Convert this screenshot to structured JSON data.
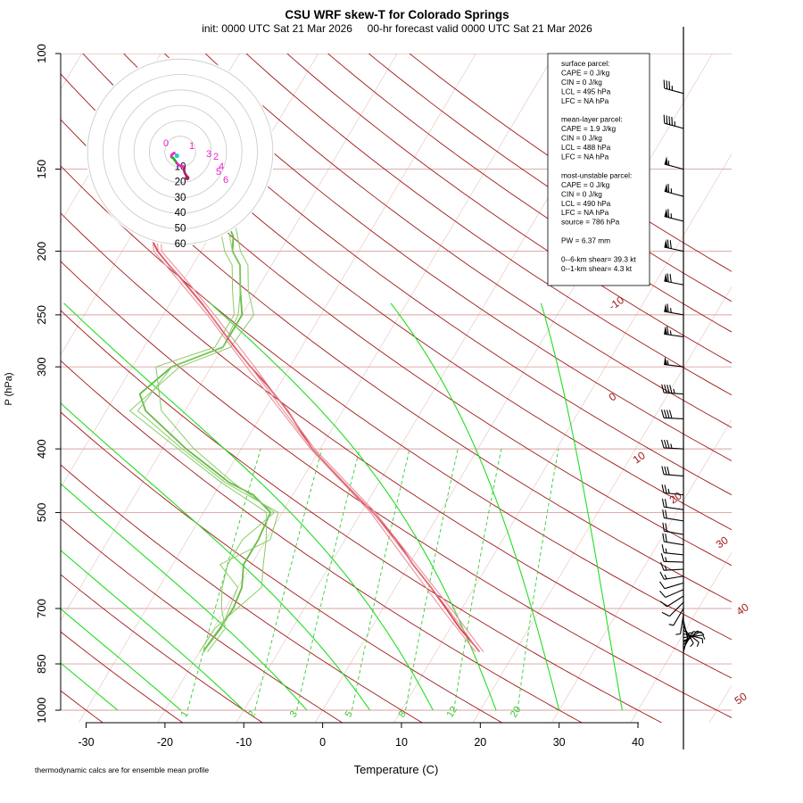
{
  "title": "CSU WRF skew-T for Colorado Springs",
  "subtitle": "init: 0000 UTC Sat 21 Mar 2026     00-hr forecast valid 0000 UTC Sat 21 Mar 2026",
  "xlabel": "Temperature (C)",
  "ylabel": "P (hPa)",
  "footnote": "thermodynamic calcs are for ensemble mean profile",
  "colors": {
    "isobar": "#d9a0a0",
    "isotherm": "#e8c0c0",
    "dry_adiabat": "#a01818",
    "moist_adiabat": "#22dd22",
    "mixing_ratio": "#33cc33",
    "temperature": "#dd4455",
    "temperature_member": "#e58a94",
    "dewpoint": "#66bb44",
    "dewpoint_member": "#88cc66",
    "hodo_ring": "#c8c8c8",
    "hodo_trace": "#ee22cc",
    "hodo_low": "#22aa22",
    "hodo_start": "#22cccc",
    "hodo_end": "#aa2266",
    "wind_barb": "#000000"
  },
  "info_box": {
    "lines": [
      "surface parcel:",
      "CAPE = 0 J/kg",
      "CIN = 0 J/kg",
      "LCL = 495 hPa",
      "LFC = NA hPa",
      "",
      "mean-layer parcel:",
      "CAPE = 1.9 J/kg",
      "CIN = 0 J/kg",
      "LCL = 488 hPa",
      "LFC = NA hPa",
      "",
      "most-unstable parcel:",
      "CAPE = 0 J/kg",
      "CIN = 0 J/kg",
      "LCL = 490 hPa",
      "LFC = NA hPa",
      "source = 786 hPa",
      "",
      "PW =  6.37 mm",
      "",
      "0--6-km shear= 39.3 kt",
      "0--1-km shear= 4.3 kt"
    ]
  },
  "hodograph": {
    "rings": [
      "10",
      "20",
      "30",
      "40",
      "50",
      "60"
    ],
    "labels": [
      "0",
      "1",
      "2",
      "3",
      "4",
      "5",
      "6"
    ]
  },
  "chart_data": {
    "type": "line",
    "title": "CSU WRF skew-T for Colorado Springs",
    "xlabel": "Temperature (C)",
    "ylabel": "P (hPa)",
    "x_ticks": [
      -30,
      -20,
      -10,
      0,
      10,
      20,
      30,
      40
    ],
    "y_ticks": [
      100,
      150,
      200,
      250,
      300,
      400,
      500,
      700,
      850,
      1000
    ],
    "y_scale": "log",
    "dry_adiabat_labels": [
      "-10",
      "0",
      "10",
      "20",
      "30",
      "40",
      "50"
    ],
    "dry_adiabat_thetas_K": [
      243.15,
      253.15,
      263.15,
      273.15,
      283.15,
      293.15,
      303.15,
      313.15,
      323.15,
      333.15,
      343.15,
      353.15,
      363.15,
      373.15,
      383.15,
      393.15,
      403.15,
      413.15,
      423.15,
      433.15,
      443.15,
      453.15
    ],
    "mixing_ratio_labels": [
      "1",
      "2",
      "3",
      "5",
      "8",
      "12",
      "20"
    ],
    "series": [
      {
        "name": "temperature",
        "role": "ensemble mean",
        "pressure": [
          815,
          800,
          750,
          700,
          650,
          600,
          550,
          500,
          450,
          400,
          350,
          320,
          300,
          280,
          250,
          240,
          220,
          210,
          200,
          190,
          180,
          170,
          160,
          150,
          140,
          130,
          120,
          115
        ],
        "value": [
          15.5,
          14.6,
          11.2,
          8,
          4.5,
          0.5,
          -3.5,
          -8.5,
          -14.5,
          -21,
          -27,
          -31.5,
          -35,
          -38.5,
          -44,
          -46,
          -50.5,
          -53,
          -55.5,
          -57.5,
          -58,
          -58.5,
          -58.5,
          -58.5,
          -58.5,
          -59,
          -59,
          -59
        ]
      },
      {
        "name": "temperature",
        "role": "member",
        "pressure": [
          815,
          700,
          500,
          400,
          300,
          250,
          220,
          200,
          180,
          160,
          140,
          120,
          115
        ],
        "value": [
          15,
          7.4,
          -8.8,
          -21.2,
          -35.5,
          -44.4,
          -51,
          -56,
          -58.6,
          -59.4,
          -59.5,
          -60,
          -60
        ]
      },
      {
        "name": "temperature",
        "role": "member",
        "pressure": [
          815,
          700,
          500,
          400,
          300,
          250,
          220,
          200,
          180,
          160,
          140,
          120,
          115
        ],
        "value": [
          16,
          8.6,
          -8.2,
          -20.7,
          -34.5,
          -43.5,
          -50,
          -55,
          -57.4,
          -57.6,
          -57.5,
          -58,
          -58
        ]
      },
      {
        "name": "temperature",
        "role": "member",
        "pressure": [
          815,
          700,
          500,
          400,
          300,
          250,
          220,
          200,
          180,
          160,
          140,
          120,
          115
        ],
        "value": [
          15.5,
          8.2,
          -8.5,
          -21,
          -35,
          -44,
          -50.6,
          -55.4,
          -58.2,
          -58.8,
          -59,
          -59.5,
          -59.5
        ]
      },
      {
        "name": "dewpoint",
        "role": "ensemble mean",
        "pressure": [
          815,
          800,
          750,
          700,
          650,
          600,
          550,
          500,
          470,
          450,
          400,
          350,
          330,
          300,
          280,
          250,
          230,
          210,
          200,
          190,
          180,
          170,
          160,
          150
        ],
        "value": [
          -19.5,
          -19.5,
          -19.2,
          -19,
          -19.5,
          -21,
          -21,
          -21.5,
          -25,
          -29,
          -37,
          -45,
          -47,
          -45,
          -40,
          -40,
          -42,
          -44,
          -46,
          -47,
          -49,
          -51,
          -53,
          -57
        ]
      },
      {
        "name": "dewpoint",
        "role": "member",
        "pressure": [
          815,
          750,
          700,
          650,
          600,
          550,
          500,
          450,
          400,
          350,
          300,
          280,
          250,
          230,
          210,
          200,
          180,
          160,
          150
        ],
        "value": [
          -20,
          -19.8,
          -18.5,
          -17,
          -18.5,
          -20,
          -22,
          -30,
          -38,
          -47,
          -44,
          -39,
          -38.5,
          -41,
          -43,
          -45,
          -48,
          -52,
          -56
        ]
      },
      {
        "name": "dewpoint",
        "role": "member",
        "pressure": [
          815,
          750,
          700,
          650,
          600,
          550,
          500,
          450,
          400,
          350,
          300,
          280,
          250,
          230,
          210,
          200,
          180,
          160,
          150
        ],
        "value": [
          -19,
          -18.5,
          -20.5,
          -22,
          -23,
          -23,
          -21,
          -28.5,
          -36,
          -43,
          -47,
          -41,
          -41,
          -43,
          -45,
          -47,
          -50,
          -54,
          -57
        ]
      },
      {
        "name": "dewpoint",
        "role": "member",
        "pressure": [
          815,
          750,
          700,
          650,
          600,
          550,
          500,
          450,
          400,
          350,
          300,
          280,
          250,
          230,
          210,
          200,
          180,
          160,
          150
        ],
        "value": [
          -19.5,
          -19,
          -19.5,
          -20,
          -24,
          -19.5,
          -20.5,
          -29.5,
          -37.5,
          -46,
          -45,
          -40,
          -40.5,
          -42,
          -44,
          -46,
          -49,
          -52,
          -56
        ]
      }
    ],
    "hodograph_kt": {
      "u": [
        4.5,
        4.4,
        3.8,
        3.3,
        2.9,
        2.6,
        2.4,
        2.7,
        2.2,
        1.9,
        1.6,
        1.3,
        1.0,
        0.4,
        -0.6,
        -1.6,
        -2.8,
        -3.5,
        -4.0,
        -4.7,
        -5.2,
        -5.7,
        -5.8,
        -5.5,
        -4.9,
        -4.6,
        -4.2,
        -3.9,
        -3.7
      ],
      "v": [
        17.0,
        16.0,
        15.2,
        14.4,
        13.6,
        12.5,
        11.8,
        11.0,
        10.3,
        9.7,
        9.4,
        9.3,
        9.3,
        9.2,
        8.8,
        8.2,
        6.5,
        5.6,
        4.8,
        4.0,
        3.8,
        3.5,
        3.0,
        2.1,
        1.6,
        1.2,
        1.0,
        0.9,
        0.9
      ],
      "ring_step_kt": 10
    },
    "wind_barbs": [
      {
        "pressure": 815,
        "u": -1.4,
        "v": -5.0
      },
      {
        "pressure": 805,
        "u": -2.5,
        "v": -4.3
      },
      {
        "pressure": 795,
        "u": -3.1,
        "v": -3.1
      },
      {
        "pressure": 785,
        "u": -3.6,
        "v": -2.0
      },
      {
        "pressure": 775,
        "u": -4.0,
        "v": -0.5
      },
      {
        "pressure": 765,
        "u": -3.9,
        "v": 1.0
      },
      {
        "pressure": 755,
        "u": -3.3,
        "v": 2.6
      },
      {
        "pressure": 745,
        "u": -2.2,
        "v": 3.7
      },
      {
        "pressure": 730,
        "u": -1.0,
        "v": 4.3
      },
      {
        "pressure": 715,
        "u": 0.8,
        "v": 5.1
      },
      {
        "pressure": 700,
        "u": 3.6,
        "v": 6.1
      },
      {
        "pressure": 685,
        "u": 5.7,
        "v": 5.7
      },
      {
        "pressure": 670,
        "u": 7.8,
        "v": 5.0
      },
      {
        "pressure": 655,
        "u": 9.7,
        "v": 4.2
      },
      {
        "pressure": 640,
        "u": 11.3,
        "v": 3.4
      },
      {
        "pressure": 625,
        "u": 12.4,
        "v": 2.0
      },
      {
        "pressure": 610,
        "u": 13.5,
        "v": 0.7
      },
      {
        "pressure": 595,
        "u": 14.8,
        "v": -0.5
      },
      {
        "pressure": 580,
        "u": 16.0,
        "v": -1.7
      },
      {
        "pressure": 560,
        "u": 18.0,
        "v": -3.0
      },
      {
        "pressure": 540,
        "u": 19.8,
        "v": -3.5
      },
      {
        "pressure": 515,
        "u": 20.8,
        "v": -3.3
      },
      {
        "pressure": 495,
        "u": 22.2,
        "v": -3.1
      },
      {
        "pressure": 470,
        "u": 24.0,
        "v": -2.5
      },
      {
        "pressure": 440,
        "u": 27.9,
        "v": -2.4
      },
      {
        "pressure": 400,
        "u": 32.9,
        "v": -1.7
      },
      {
        "pressure": 360,
        "u": 39.0,
        "v": -2.0
      },
      {
        "pressure": 330,
        "u": 46.7,
        "v": -3.3
      },
      {
        "pressure": 300,
        "u": 56.8,
        "v": -7.0
      },
      {
        "pressure": 270,
        "u": 63.4,
        "v": -9.0
      },
      {
        "pressure": 250,
        "u": 66.3,
        "v": -11.7
      },
      {
        "pressure": 225,
        "u": 69.0,
        "v": -13.4
      },
      {
        "pressure": 200,
        "u": 69.4,
        "v": -14.7
      },
      {
        "pressure": 180,
        "u": 64.4,
        "v": -16.1
      },
      {
        "pressure": 165,
        "u": 60.5,
        "v": -16.2
      },
      {
        "pressure": 150,
        "u": 54.6,
        "v": -14.6
      },
      {
        "pressure": 130,
        "u": 43.2,
        "v": -11.6
      },
      {
        "pressure": 115,
        "u": 33.7,
        "v": -9.0
      }
    ]
  }
}
